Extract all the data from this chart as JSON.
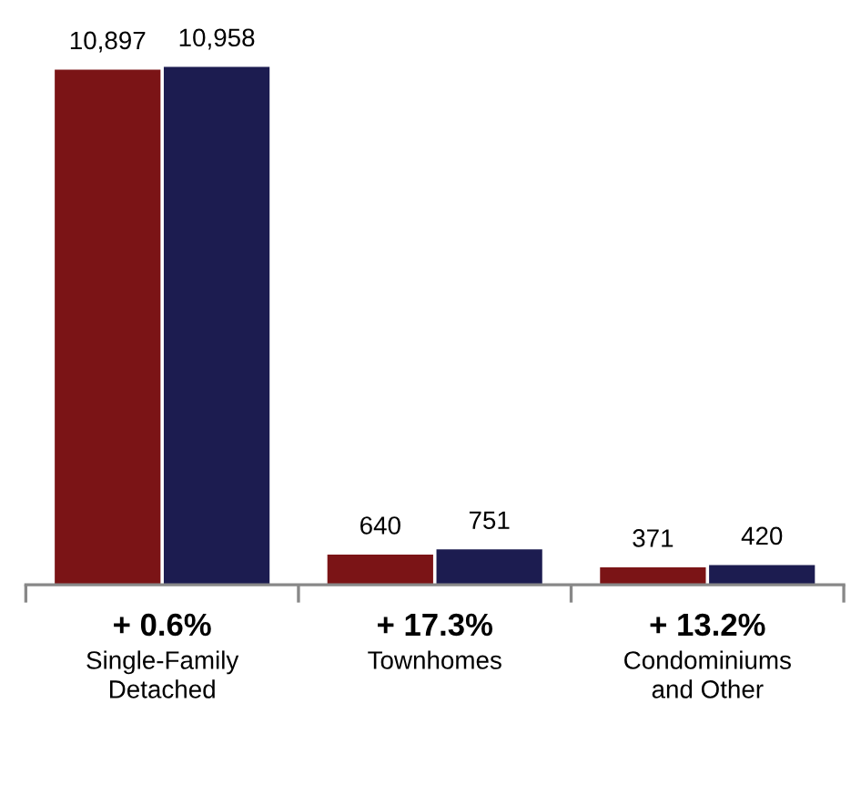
{
  "chart_data": {
    "type": "bar",
    "categories": [
      "Single-Family\nDetached",
      "Townhomes",
      "Condominiums\nand Other"
    ],
    "series": [
      {
        "color": "#7b1416",
        "values": [
          10897,
          640,
          371
        ],
        "value_labels": [
          "10,897",
          "640",
          "371"
        ]
      },
      {
        "color": "#1c1c50",
        "values": [
          10958,
          751,
          420
        ],
        "value_labels": [
          "10,958",
          "751",
          "420"
        ]
      }
    ],
    "annotations": [
      "+ 0.6%",
      "+ 17.3%",
      "+ 13.2%"
    ]
  }
}
